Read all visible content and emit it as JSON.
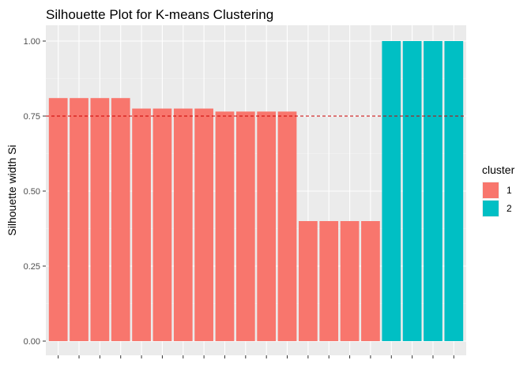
{
  "chart_data": {
    "type": "bar",
    "title": "Silhouette Plot for K-means Clustering",
    "xlabel": "",
    "ylabel": "Silhouette width Si",
    "ylim": [
      0,
      1.0
    ],
    "yticks": [
      "0.00",
      "0.25",
      "0.50",
      "0.75",
      "1.00"
    ],
    "ytick_values": [
      0,
      0.25,
      0.5,
      0.75,
      1.0
    ],
    "values": [
      0.81,
      0.81,
      0.81,
      0.81,
      0.775,
      0.775,
      0.775,
      0.775,
      0.765,
      0.765,
      0.765,
      0.765,
      0.4,
      0.4,
      0.4,
      0.4,
      1.0,
      1.0,
      1.0,
      1.0
    ],
    "clusters": [
      "1",
      "1",
      "1",
      "1",
      "1",
      "1",
      "1",
      "1",
      "1",
      "1",
      "1",
      "1",
      "1",
      "1",
      "1",
      "1",
      "2",
      "2",
      "2",
      "2"
    ],
    "reference_line": 0.75,
    "reference_line_color": "#cc0000",
    "grid": true,
    "legend": {
      "title": "cluster",
      "position": "right",
      "entries": [
        {
          "label": "1",
          "color": "#F8766D"
        },
        {
          "label": "2",
          "color": "#00BFC4"
        }
      ]
    }
  }
}
